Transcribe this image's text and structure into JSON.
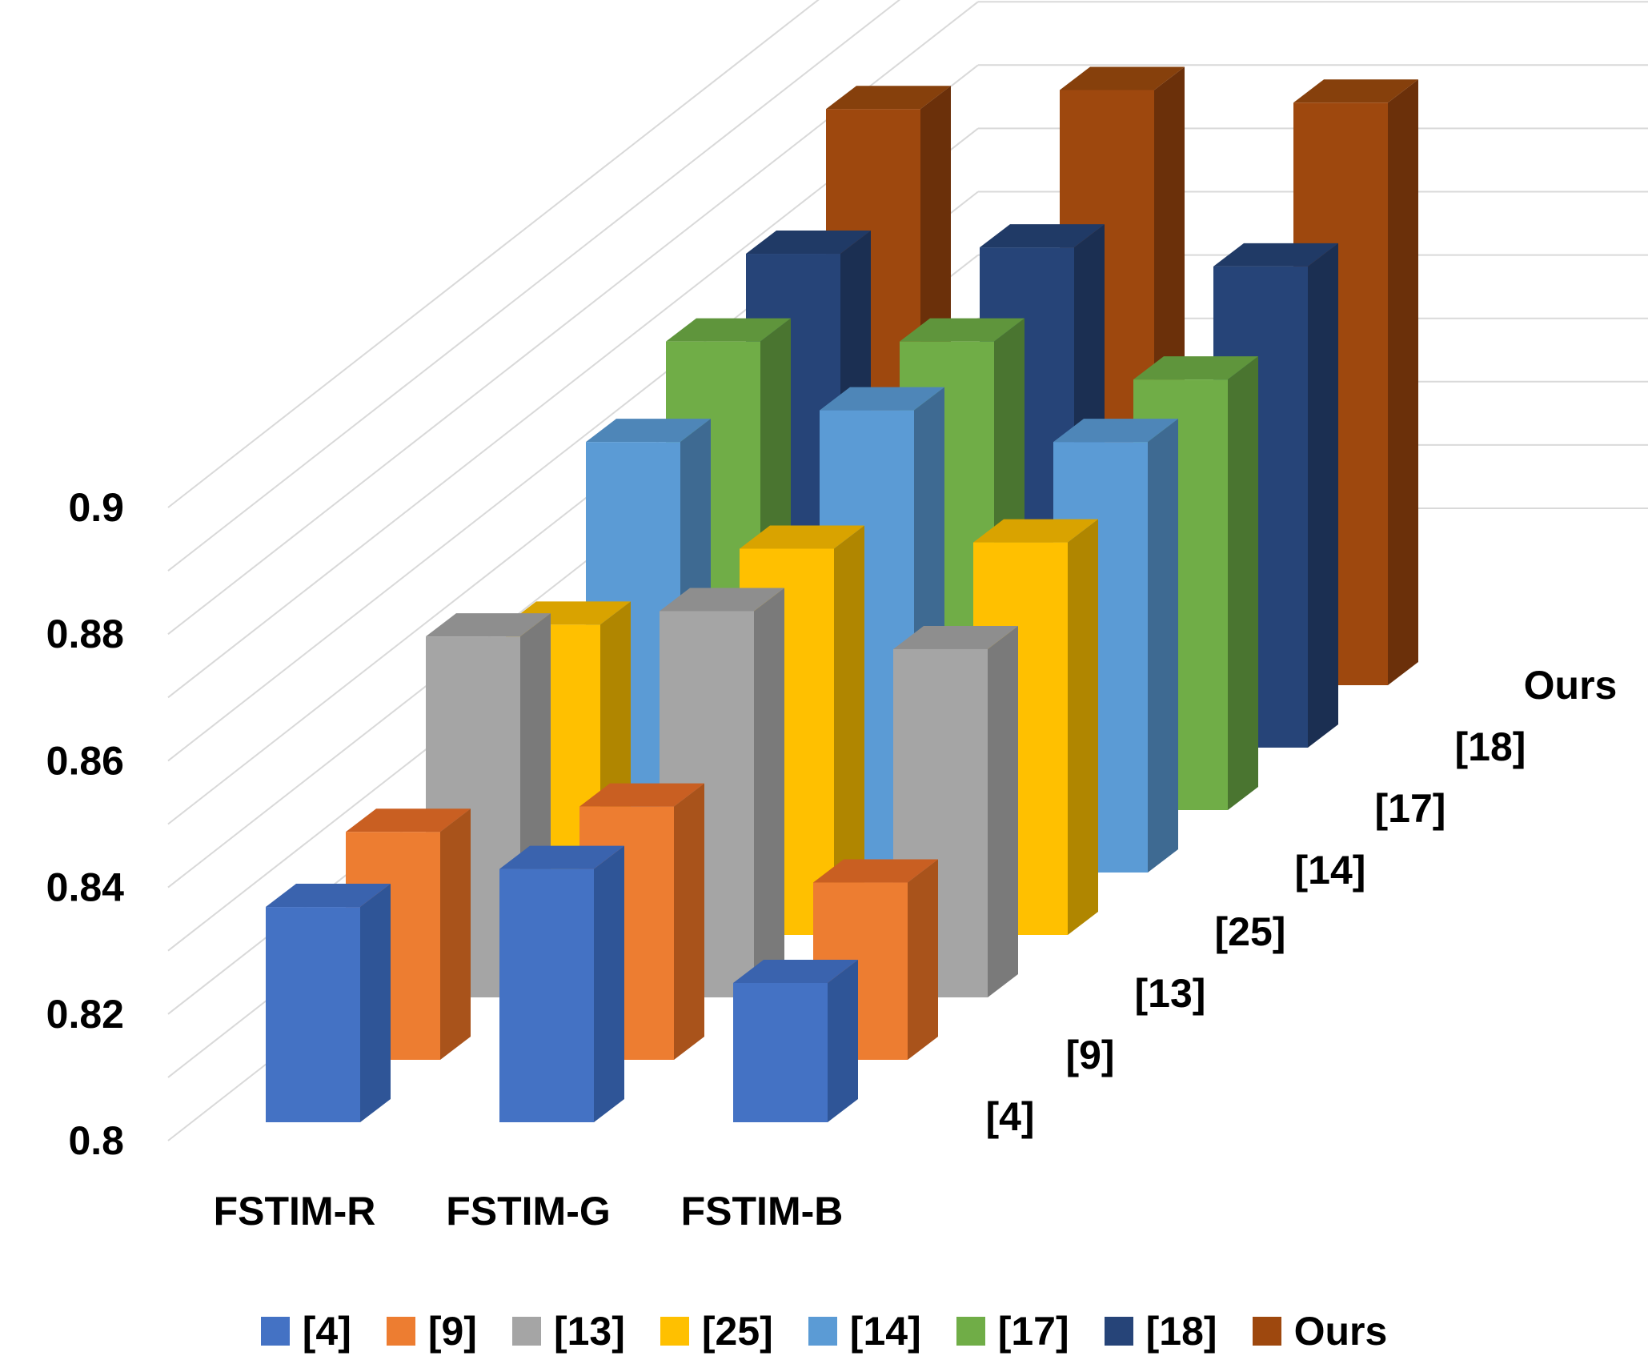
{
  "chart_data": {
    "type": "bar",
    "variant": "3d-column",
    "title": "",
    "categories": [
      "FSTIM-R",
      "FSTIM-G",
      "FSTIM-B"
    ],
    "ylim": [
      0.8,
      0.9
    ],
    "yticks": [
      "0.8",
      "0.82",
      "0.84",
      "0.86",
      "0.88",
      "0.9"
    ],
    "grid": true,
    "legend": "bottom",
    "series": [
      {
        "name": "[4]",
        "color": "#4472C4",
        "side": "#2F5597",
        "top": "#3A63AE",
        "values": [
          0.834,
          0.84,
          0.822
        ]
      },
      {
        "name": "[9]",
        "color": "#ED7D31",
        "side": "#A9531B",
        "top": "#C95F22",
        "values": [
          0.836,
          0.84,
          0.828
        ]
      },
      {
        "name": "[13]",
        "color": "#A5A5A5",
        "side": "#7A7A7A",
        "top": "#8E8E8E",
        "values": [
          0.857,
          0.861,
          0.855
        ]
      },
      {
        "name": "[25]",
        "color": "#FFC000",
        "side": "#B08600",
        "top": "#D9A300",
        "values": [
          0.849,
          0.861,
          0.862
        ]
      },
      {
        "name": "[14]",
        "color": "#5B9BD5",
        "side": "#3E6A92",
        "top": "#4E86B8",
        "values": [
          0.868,
          0.873,
          0.868
        ]
      },
      {
        "name": "[17]",
        "color": "#70AD47",
        "side": "#4A7530",
        "top": "#5F953C",
        "values": [
          0.874,
          0.874,
          0.868
        ]
      },
      {
        "name": "[18]",
        "color": "#264478",
        "side": "#1B2F52",
        "top": "#203A66",
        "values": [
          0.878,
          0.879,
          0.876
        ]
      },
      {
        "name": "Ours",
        "color": "#9E480E",
        "side": "#6B300A",
        "top": "#86400C",
        "values": [
          0.891,
          0.894,
          0.892
        ]
      }
    ]
  }
}
